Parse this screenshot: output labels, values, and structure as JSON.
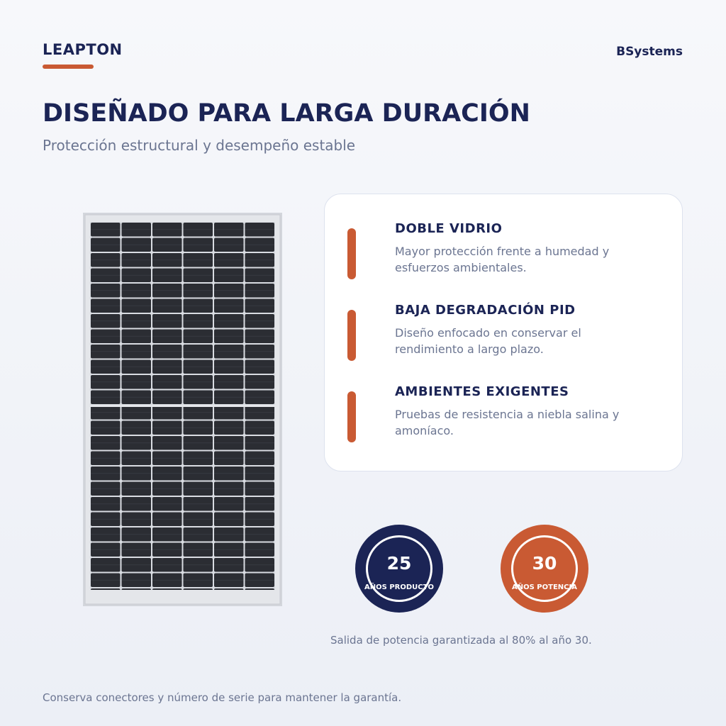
{
  "header": {
    "brand": "LEAPTON",
    "company": "BSystems"
  },
  "title": "DISEÑADO PARA LARGA DURACIÓN",
  "subtitle": "Protección estructural y desempeño estable",
  "features": [
    {
      "title": "DOBLE VIDRIO",
      "text": "Mayor protección frente a humedad y esfuerzos ambientales."
    },
    {
      "title": "BAJA DEGRADACIÓN PID",
      "text": "Diseño enfocado en conservar el rendimiento a largo plazo."
    },
    {
      "title": "AMBIENTES EXIGENTES",
      "text": "Pruebas de resistencia a niebla salina y amoníaco."
    }
  ],
  "badges": [
    {
      "number": 25,
      "label": "AÑOS PRODUCTO"
    },
    {
      "number": 30,
      "label": "AÑOS POTENCIA"
    }
  ],
  "badge_note": "Salida de potencia garantizada al 80% al año 30.",
  "footer": "Conserva conectores y número de serie para mantener la garantía."
}
